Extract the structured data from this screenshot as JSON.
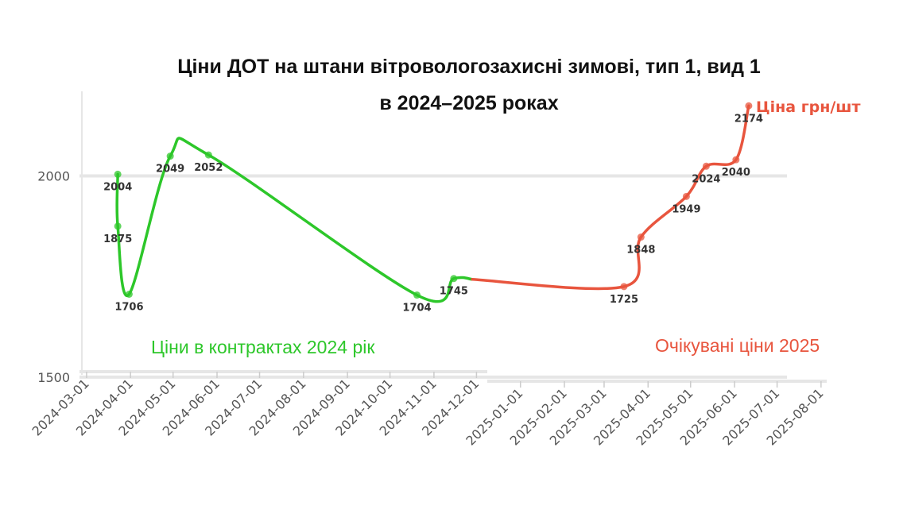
{
  "title_line1": "Ціни ДОТ на штани вітровологозахисні зимові, тип 1, вид 1",
  "title_line2": "в 2024–2025 роках",
  "annotation_contract": "Ціни в контрактах 2024 рік",
  "annotation_expected": "Очікувані ціни 2025",
  "colors": {
    "contract": "#2dc72a",
    "expected": "#e8553e",
    "grid": "#e6e6e6",
    "text": "#333333"
  },
  "chart_data": {
    "type": "line",
    "title": "Ціни ДОТ на штани вітровологозахисні зимові, тип 1, вид 1 в 2024–2025 роках",
    "x_axis": {
      "type": "date",
      "range": [
        "2024-02-25",
        "2025-08-05"
      ],
      "ticks": [
        "2024-03-01",
        "2024-04-01",
        "2024-05-01",
        "2024-06-01",
        "2024-07-01",
        "2024-08-01",
        "2024-09-01",
        "2024-10-01",
        "2024-11-01",
        "2024-12-01",
        "2025-01-01",
        "2025-02-01",
        "2025-03-01",
        "2025-04-01",
        "2025-05-01",
        "2025-06-01",
        "2025-07-01",
        "2025-08-01"
      ]
    },
    "y_axis": {
      "range": [
        1490,
        2210
      ],
      "ticks": [
        1500,
        2000
      ],
      "grid": true
    },
    "series": [
      {
        "name": "Ціни в контрактах 2024 рік",
        "color": "#2dc72a",
        "points": [
          {
            "x": "2024-03-23",
            "y": 2004,
            "label": "2004"
          },
          {
            "x": "2024-03-23",
            "y": 1875,
            "label": "1875"
          },
          {
            "x": "2024-03-31",
            "y": 1706,
            "label": "1706"
          },
          {
            "x": "2024-04-29",
            "y": 2049,
            "label": "2049"
          },
          {
            "x": "2024-05-26",
            "y": 2052,
            "label": "2052"
          },
          {
            "x": "2024-10-20",
            "y": 1704,
            "label": "1704"
          },
          {
            "x": "2024-11-15",
            "y": 1745,
            "label": "1745"
          },
          {
            "x": "2024-11-28",
            "y": 1743,
            "label": ""
          }
        ]
      },
      {
        "name": "Ціна грн/шт",
        "color": "#e8553e",
        "points": [
          {
            "x": "2024-11-28",
            "y": 1743,
            "label": ""
          },
          {
            "x": "2025-03-15",
            "y": 1725,
            "label": "1725"
          },
          {
            "x": "2025-03-27",
            "y": 1848,
            "label": "1848"
          },
          {
            "x": "2025-04-28",
            "y": 1949,
            "label": "1949"
          },
          {
            "x": "2025-05-12",
            "y": 2024,
            "label": "2024"
          },
          {
            "x": "2025-06-02",
            "y": 2040,
            "label": "2040"
          },
          {
            "x": "2025-06-11",
            "y": 2174,
            "label": "2174"
          }
        ]
      }
    ]
  }
}
